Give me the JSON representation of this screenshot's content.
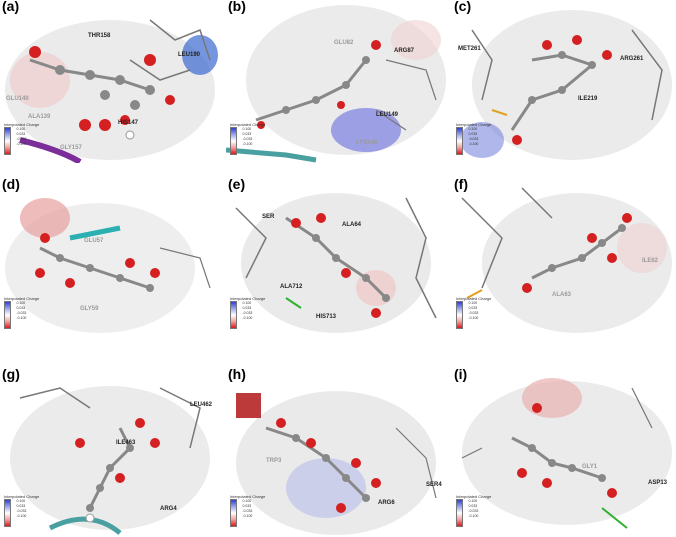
{
  "legend": {
    "title": "Interpolated Charge",
    "ticks": [
      "0.100",
      "0.067",
      "0.033",
      "0.000",
      "-0.033",
      "-0.067",
      "-0.100"
    ]
  },
  "panels": [
    {
      "id": "a",
      "label": "(a)",
      "residues": [
        {
          "text": "THR158",
          "style": "dark"
        },
        {
          "text": "LEU190",
          "style": "dark"
        },
        {
          "text": "GLU140",
          "style": "light"
        },
        {
          "text": "ALA139",
          "style": "light"
        },
        {
          "text": "HIS147",
          "style": "dark"
        },
        {
          "text": "GLY157",
          "style": "light"
        }
      ]
    },
    {
      "id": "b",
      "label": "(b)",
      "residues": [
        {
          "text": "GLU82",
          "style": "light"
        },
        {
          "text": "ARG87",
          "style": "dark"
        },
        {
          "text": "LEU149",
          "style": "dark"
        },
        {
          "text": "LYS149",
          "style": "light"
        }
      ]
    },
    {
      "id": "c",
      "label": "(c)",
      "residues": [
        {
          "text": "MET261",
          "style": "dark"
        },
        {
          "text": "ARG261",
          "style": "dark"
        },
        {
          "text": "ILE219",
          "style": "dark"
        }
      ]
    },
    {
      "id": "d",
      "label": "(d)",
      "residues": [
        {
          "text": "GLU57",
          "style": "light"
        },
        {
          "text": "GLY59",
          "style": "light"
        }
      ]
    },
    {
      "id": "e",
      "label": "(e)",
      "residues": [
        {
          "text": "SER",
          "style": "dark"
        },
        {
          "text": "ALA64",
          "style": "dark"
        },
        {
          "text": "ALA712",
          "style": "dark"
        },
        {
          "text": "HIS713",
          "style": "dark"
        }
      ]
    },
    {
      "id": "f",
      "label": "(f)",
      "residues": [
        {
          "text": "ILE62",
          "style": "light"
        },
        {
          "text": "ALA63",
          "style": "light"
        }
      ]
    },
    {
      "id": "g",
      "label": "(g)",
      "residues": [
        {
          "text": "LEU462",
          "style": "dark"
        },
        {
          "text": "ILE463",
          "style": "dark"
        },
        {
          "text": "ARG4",
          "style": "dark"
        }
      ]
    },
    {
      "id": "h",
      "label": "(h)",
      "residues": [
        {
          "text": "SER4",
          "style": "dark"
        },
        {
          "text": "ARG6",
          "style": "dark"
        },
        {
          "text": "TRP3",
          "style": "light"
        }
      ]
    },
    {
      "id": "i",
      "label": "(i)",
      "residues": [
        {
          "text": "ASP13",
          "style": "dark"
        },
        {
          "text": "GLY1",
          "style": "light"
        }
      ]
    }
  ]
}
